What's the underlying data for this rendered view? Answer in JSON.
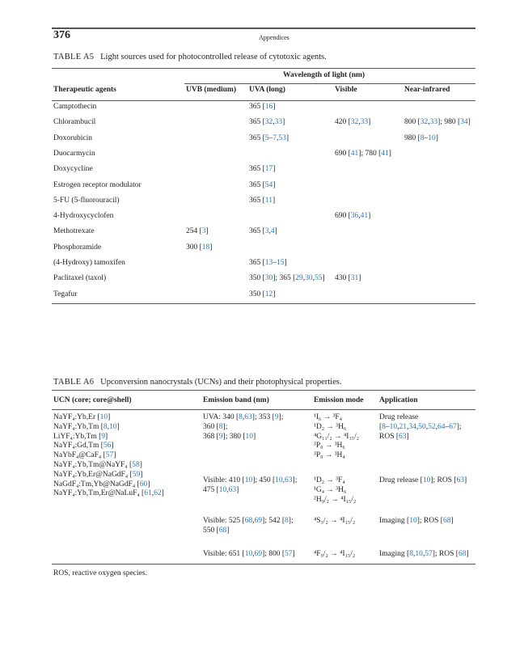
{
  "header": {
    "page_number": "376",
    "running_title": "Appendices"
  },
  "colors": {
    "reference_link": "#2a73b8",
    "text": "#222222"
  },
  "table_a5": {
    "label": "TABLE A5",
    "caption": "Light sources used for photocontrolled release of cytotoxic agents.",
    "group_header": "Wavelength of light (nm)",
    "columns": [
      "Therapeutic agents",
      "UVB (medium)",
      "UVA (long)",
      "Visible",
      "Near-infrared"
    ],
    "rows": [
      [
        "Camptothecin",
        "",
        "365 [16]",
        "",
        ""
      ],
      [
        "Chlorambucil",
        "",
        "365 [32,33]",
        "420 [32,33]",
        "800 [32,33]; 980 [34]"
      ],
      [
        "Doxorubicin",
        "",
        "365 [5–7,53]",
        "",
        "980 [8–10]"
      ],
      [
        "Duocarmycin",
        "",
        "",
        "690 [41]; 780 [41]",
        ""
      ],
      [
        "Doxycycline",
        "",
        "365 [17]",
        "",
        ""
      ],
      [
        "Estrogen receptor modulator",
        "",
        "365 [54]",
        "",
        ""
      ],
      [
        "5-FU (5-fluorouracil)",
        "",
        "365 [11]",
        "",
        ""
      ],
      [
        "4-Hydroxycyclofen",
        "",
        "",
        "690 [36,41]",
        ""
      ],
      [
        "Methotrexate",
        "254 [3]",
        "365 [3,4]",
        "",
        ""
      ],
      [
        "Phosphoramide",
        "300 [18]",
        "",
        "",
        ""
      ],
      [
        "(4-Hydroxy) tamoxifen",
        "",
        "365 [13–15]",
        "",
        ""
      ],
      [
        "Paclitaxel (taxol)",
        "",
        "350 [30]; 365 [29,30,55]",
        "430 [31]",
        ""
      ],
      [
        "Tegafur",
        "",
        "350 [12]",
        "",
        ""
      ]
    ]
  },
  "table_a6": {
    "label": "TABLE A6",
    "caption": "Upconversion nanocrystals (UCNs) and their photophysical properties.",
    "columns": [
      "UCN (core; core@shell)",
      "Emission band (nm)",
      "Emission mode",
      "Application"
    ],
    "ucn": [
      "NaYF₄:Yb,Er [10]",
      "NaYF₄:Yb,Tm [8,10]",
      "LiYF₄:Yb,Tm [9]",
      "NaYF₄:Gd,Tm [56]",
      "NaYbF₄@CaF₄ [57]",
      "NaYF₄:Yb,Tm@NaYF₄ [58]",
      "NaYF₄:Yb,Er@NaGdF₄ [59]",
      "NaGdF₄:Tm,Yb@NaGdF₄ [60]",
      "NaYF₄:Yb,Tm,Er@NaLuF₄ [61,62]"
    ],
    "groups": [
      {
        "band": [
          "UVA: 340 [8,63]; 353 [9];",
          "360 [8];",
          "368 [9]; 380 [10]"
        ],
        "mode": [
          "¹I₆ → ³F₄",
          "¹D₂ → ³H₆",
          "⁴G₁₁/₂ → ⁴I₁₅/₂",
          "³P₀ → ³H₆",
          "³P₀ → ³H₄"
        ],
        "app": [
          "Drug release",
          "[8–10,21,34,50,52,64–67];",
          "ROS [63]"
        ]
      },
      {
        "band": [
          "Visible: 410 [10]; 450 [10,63];",
          "475 [10,63]"
        ],
        "mode": [
          "¹D₂ → ³F₄",
          "¹G₄ → ³H₆",
          "²H₉/₂ → ⁴I₁₅/₂"
        ],
        "app": [
          "Drug release [10]; ROS [63]"
        ]
      },
      {
        "band": [
          "Visible: 525 [68,69]; 542 [8];",
          "550 [68]"
        ],
        "mode": [
          "⁴S₃/₂ → ⁴I₁₅/₂"
        ],
        "app": [
          "Imaging [10]; ROS [68]"
        ]
      },
      {
        "band": [
          "Visible: 651 [10,69]; 800 [57]"
        ],
        "mode": [
          "⁴F₉/₂ → ⁴I₁₅/₂"
        ],
        "app": [
          "Imaging [8,10,57]; ROS [68]"
        ]
      }
    ],
    "footnote": "ROS, reactive oxygen species."
  }
}
